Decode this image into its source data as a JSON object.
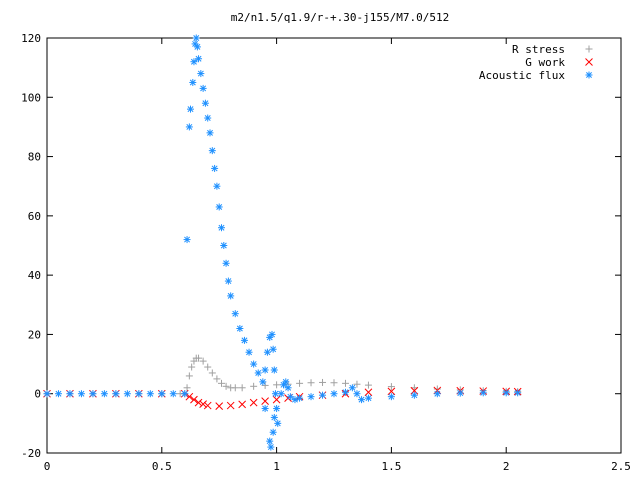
{
  "chart_data": {
    "type": "scatter",
    "title": "m2/n1.5/q1.9/r-+.30-j155/M7.0/512",
    "xlabel": "",
    "ylabel": "",
    "xlim": [
      0,
      2.5
    ],
    "ylim": [
      -20,
      120
    ],
    "x_ticks": [
      "0",
      "0.5",
      "1",
      "1.5",
      "2",
      "2.5"
    ],
    "y_ticks": [
      "-20",
      "0",
      "20",
      "40",
      "60",
      "80",
      "100",
      "120"
    ],
    "grid": false,
    "legend_position": "top-right",
    "series": [
      {
        "name": "R stress",
        "marker": "+",
        "color": "#a0a0a0",
        "points": [
          [
            0.0,
            0
          ],
          [
            0.1,
            0
          ],
          [
            0.2,
            0
          ],
          [
            0.3,
            0
          ],
          [
            0.4,
            0
          ],
          [
            0.5,
            0
          ],
          [
            0.58,
            0
          ],
          [
            0.6,
            0
          ],
          [
            0.61,
            2
          ],
          [
            0.62,
            6
          ],
          [
            0.63,
            9
          ],
          [
            0.64,
            11
          ],
          [
            0.65,
            12
          ],
          [
            0.66,
            12
          ],
          [
            0.68,
            11
          ],
          [
            0.7,
            9
          ],
          [
            0.72,
            7
          ],
          [
            0.74,
            5
          ],
          [
            0.76,
            3.5
          ],
          [
            0.78,
            2.5
          ],
          [
            0.8,
            2
          ],
          [
            0.82,
            2
          ],
          [
            0.85,
            2
          ],
          [
            0.9,
            2.5
          ],
          [
            0.95,
            2.8
          ],
          [
            1.0,
            3
          ],
          [
            1.05,
            3.2
          ],
          [
            1.1,
            3.5
          ],
          [
            1.15,
            3.7
          ],
          [
            1.2,
            3.8
          ],
          [
            1.25,
            3.7
          ],
          [
            1.3,
            3.5
          ],
          [
            1.35,
            3.2
          ],
          [
            1.4,
            2.9
          ],
          [
            1.5,
            2.4
          ],
          [
            1.6,
            2
          ],
          [
            1.7,
            1.6
          ],
          [
            1.8,
            1.3
          ],
          [
            1.9,
            1
          ],
          [
            2.0,
            0.8
          ],
          [
            2.05,
            0.7
          ]
        ]
      },
      {
        "name": "G work",
        "marker": "x",
        "color": "#ff0000",
        "points": [
          [
            0.0,
            0
          ],
          [
            0.1,
            0
          ],
          [
            0.2,
            0
          ],
          [
            0.3,
            0
          ],
          [
            0.4,
            0
          ],
          [
            0.5,
            0
          ],
          [
            0.6,
            0
          ],
          [
            0.62,
            -1
          ],
          [
            0.64,
            -2
          ],
          [
            0.66,
            -3
          ],
          [
            0.68,
            -3.5
          ],
          [
            0.7,
            -4
          ],
          [
            0.75,
            -4.2
          ],
          [
            0.8,
            -4
          ],
          [
            0.85,
            -3.6
          ],
          [
            0.9,
            -3
          ],
          [
            0.95,
            -2.5
          ],
          [
            1.0,
            -2
          ],
          [
            1.05,
            -1.5
          ],
          [
            1.1,
            -1
          ],
          [
            1.2,
            -0.5
          ],
          [
            1.3,
            0
          ],
          [
            1.4,
            0.5
          ],
          [
            1.5,
            0.8
          ],
          [
            1.6,
            1
          ],
          [
            1.7,
            1.1
          ],
          [
            1.8,
            1
          ],
          [
            1.9,
            0.9
          ],
          [
            2.0,
            0.8
          ],
          [
            2.05,
            0.7
          ]
        ]
      },
      {
        "name": "Acoustic flux",
        "marker": "*",
        "color": "#1e90ff",
        "points": [
          [
            0.0,
            0
          ],
          [
            0.05,
            0
          ],
          [
            0.1,
            0
          ],
          [
            0.15,
            0
          ],
          [
            0.2,
            0
          ],
          [
            0.25,
            0
          ],
          [
            0.3,
            0
          ],
          [
            0.35,
            0
          ],
          [
            0.4,
            0
          ],
          [
            0.45,
            0
          ],
          [
            0.5,
            0
          ],
          [
            0.55,
            0
          ],
          [
            0.6,
            0
          ],
          [
            0.61,
            52
          ],
          [
            0.62,
            90
          ],
          [
            0.625,
            96
          ],
          [
            0.635,
            105
          ],
          [
            0.64,
            112
          ],
          [
            0.645,
            118
          ],
          [
            0.65,
            120
          ],
          [
            0.655,
            117
          ],
          [
            0.66,
            113
          ],
          [
            0.67,
            108
          ],
          [
            0.68,
            103
          ],
          [
            0.69,
            98
          ],
          [
            0.7,
            93
          ],
          [
            0.71,
            88
          ],
          [
            0.72,
            82
          ],
          [
            0.73,
            76
          ],
          [
            0.74,
            70
          ],
          [
            0.75,
            63
          ],
          [
            0.76,
            56
          ],
          [
            0.77,
            50
          ],
          [
            0.78,
            44
          ],
          [
            0.79,
            38
          ],
          [
            0.8,
            33
          ],
          [
            0.82,
            27
          ],
          [
            0.84,
            22
          ],
          [
            0.86,
            18
          ],
          [
            0.88,
            14
          ],
          [
            0.9,
            10
          ],
          [
            0.92,
            7
          ],
          [
            0.94,
            4
          ],
          [
            0.95,
            8
          ],
          [
            0.96,
            14
          ],
          [
            0.97,
            19
          ],
          [
            0.98,
            20
          ],
          [
            0.985,
            15
          ],
          [
            0.99,
            8
          ],
          [
            0.995,
            0
          ],
          [
            1.0,
            -5
          ],
          [
            1.005,
            -10
          ],
          [
            0.97,
            -16
          ],
          [
            0.975,
            -18
          ],
          [
            0.985,
            -13
          ],
          [
            0.99,
            -8
          ],
          [
            0.95,
            -5
          ],
          [
            1.02,
            0
          ],
          [
            1.03,
            3
          ],
          [
            1.04,
            4
          ],
          [
            1.05,
            2
          ],
          [
            1.06,
            -1
          ],
          [
            1.08,
            -2
          ],
          [
            1.1,
            -1.5
          ],
          [
            1.15,
            -1
          ],
          [
            1.2,
            -0.5
          ],
          [
            1.25,
            0
          ],
          [
            1.3,
            0.5
          ],
          [
            1.33,
            2
          ],
          [
            1.35,
            0
          ],
          [
            1.37,
            -2
          ],
          [
            1.4,
            -1.5
          ],
          [
            1.5,
            -1
          ],
          [
            1.6,
            -0.5
          ],
          [
            1.7,
            0
          ],
          [
            1.8,
            0.2
          ],
          [
            1.9,
            0.3
          ],
          [
            2.0,
            0.3
          ],
          [
            2.05,
            0.3
          ]
        ]
      }
    ]
  }
}
